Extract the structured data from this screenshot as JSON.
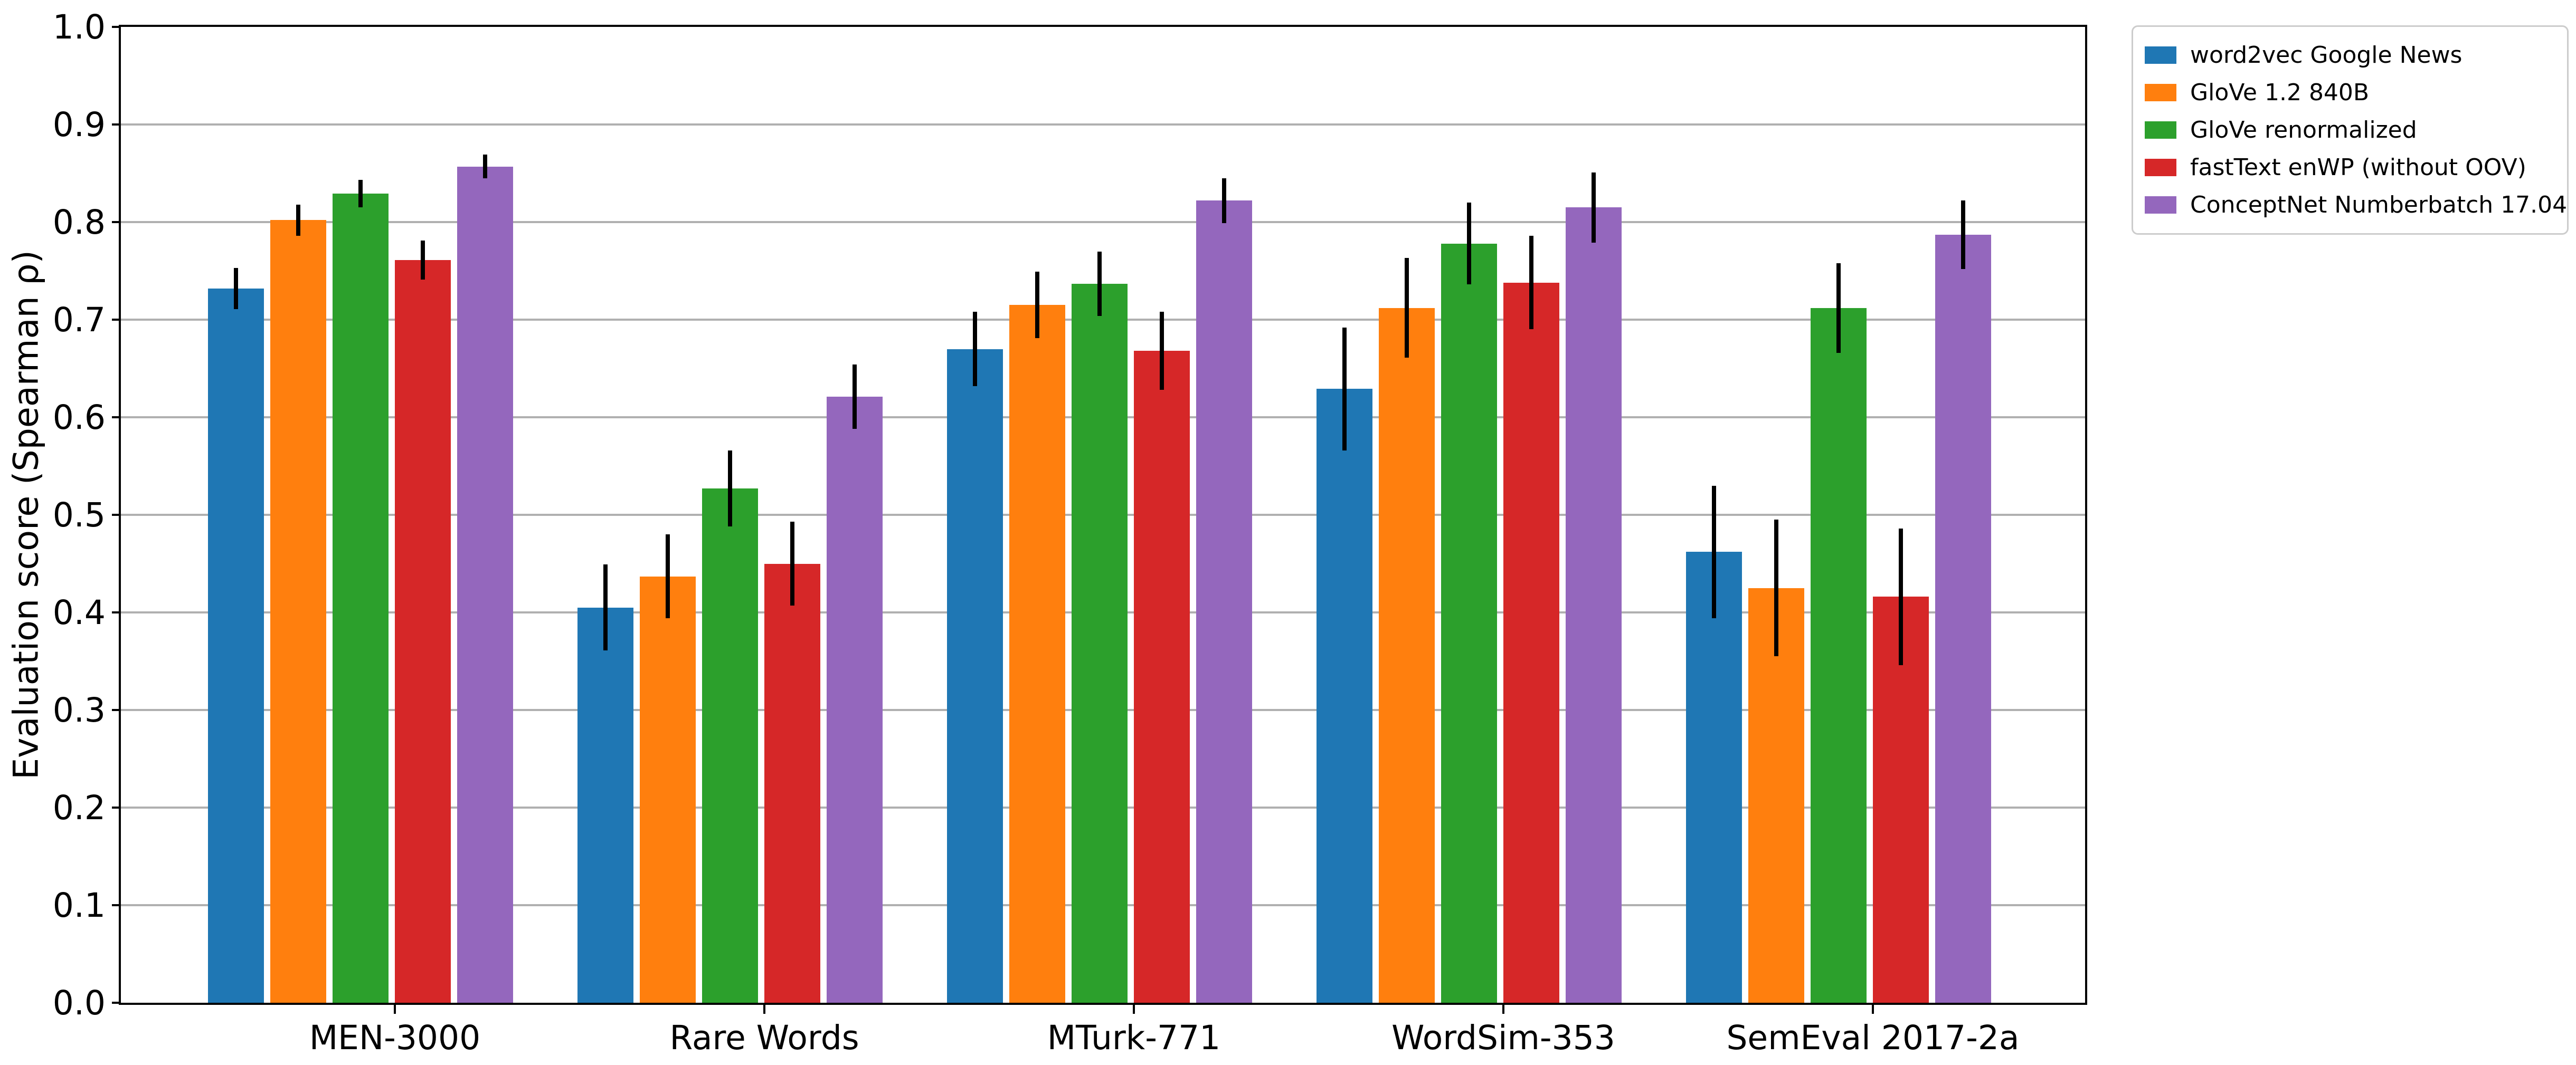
{
  "chart_data": {
    "type": "bar",
    "title": "",
    "xlabel": "",
    "ylabel": "Evaluation score (Spearman ρ)",
    "ylim": [
      0.0,
      1.0
    ],
    "yticks": [
      "0.0",
      "0.1",
      "0.2",
      "0.3",
      "0.4",
      "0.5",
      "0.6",
      "0.7",
      "0.8",
      "0.9",
      "1.0"
    ],
    "grid": true,
    "grid_color": "#b0b0b0",
    "spine_color": "#000000",
    "error_bar_color": "#000000",
    "legend_position": "outside right top",
    "categories": [
      "MEN-3000",
      "Rare Words",
      "MTurk-771",
      "WordSim-353",
      "SemEval 2017-2a"
    ],
    "series": [
      {
        "name": "word2vec Google News",
        "color": "#1f77b4",
        "values": [
          0.732,
          0.405,
          0.67,
          0.629,
          0.462
        ],
        "errors": [
          0.021,
          0.044,
          0.038,
          0.063,
          0.068
        ]
      },
      {
        "name": "GloVe 1.2 840B",
        "color": "#ff7f0e",
        "values": [
          0.802,
          0.437,
          0.715,
          0.712,
          0.425
        ],
        "errors": [
          0.016,
          0.043,
          0.034,
          0.051,
          0.07
        ]
      },
      {
        "name": "GloVe renormalized",
        "color": "#2ca02c",
        "values": [
          0.829,
          0.527,
          0.737,
          0.778,
          0.712
        ],
        "errors": [
          0.014,
          0.039,
          0.033,
          0.042,
          0.046
        ]
      },
      {
        "name": "fastText enWP (without OOV)",
        "color": "#d62728",
        "values": [
          0.761,
          0.45,
          0.668,
          0.738,
          0.416
        ],
        "errors": [
          0.02,
          0.043,
          0.04,
          0.048,
          0.07
        ]
      },
      {
        "name": "ConceptNet Numberbatch 17.04",
        "color": "#9467bd",
        "values": [
          0.857,
          0.621,
          0.822,
          0.815,
          0.787
        ],
        "errors": [
          0.012,
          0.033,
          0.023,
          0.036,
          0.035
        ]
      }
    ]
  }
}
